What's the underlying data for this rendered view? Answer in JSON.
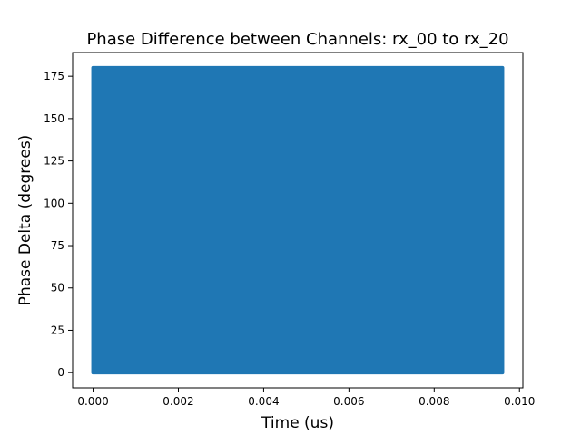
{
  "chart_data": {
    "type": "scatter",
    "title": "Phase Difference between Channels: rx_00 to rx_20",
    "xlabel": "Time (us)",
    "ylabel": "Phase Delta (degrees)",
    "xlim": [
      -0.00048,
      0.01008
    ],
    "ylim": [
      -9,
      189
    ],
    "x_ticks": [
      0.0,
      0.002,
      0.004,
      0.006,
      0.008,
      0.01
    ],
    "x_tick_labels": [
      "0.000",
      "0.002",
      "0.004",
      "0.006",
      "0.008",
      "0.010"
    ],
    "y_ticks": [
      0,
      25,
      50,
      75,
      100,
      125,
      150,
      175
    ],
    "y_tick_labels": [
      "0",
      "25",
      "50",
      "75",
      "100",
      "125",
      "150",
      "175"
    ],
    "series": [
      {
        "color": "#1f77b4",
        "x_range": [
          0.0,
          0.0096
        ],
        "y_range": [
          0,
          180
        ],
        "note_fill": "dense"
      }
    ],
    "grid": false,
    "legend": "none"
  }
}
